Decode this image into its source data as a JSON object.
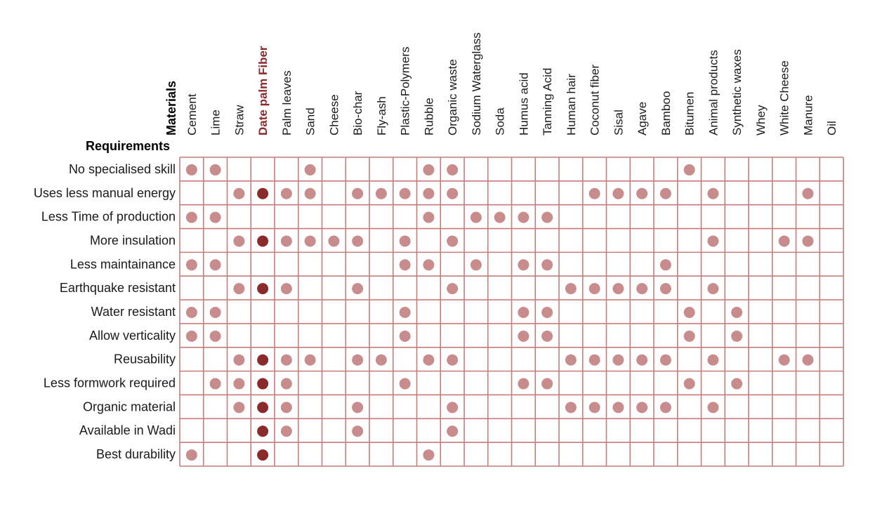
{
  "chart_data": {
    "type": "table",
    "row_header": "Requirements",
    "column_header": "Materials",
    "highlight_column": "Date palm Fiber",
    "colors": {
      "grid": "#c77c7c",
      "dot": "#c98c8c",
      "dot_highlight": "#8b2a2a",
      "highlight_text": "#8b2a2a"
    },
    "columns": [
      "Cement",
      "Lime",
      "Straw",
      "Date palm Fiber",
      "Palm leaves",
      "Sand",
      "Cheese",
      "Bio-char",
      "Fly-ash",
      "Plastic-Polymers",
      "Rubble",
      "Organic waste",
      "Sodium Waterglass",
      "Soda",
      "Humus acid",
      "Tanning Acid",
      "Human hair",
      "Coconut fiber",
      "Sisal",
      "Agave",
      "Bamboo",
      "Bitumen",
      "Animal products",
      "Synthetic waxes",
      "Whey",
      "White Cheese",
      "Manure",
      "Oil"
    ],
    "rows": [
      {
        "requirement": "No specialised skill",
        "materials": [
          "Cement",
          "Lime",
          "Sand",
          "Rubble",
          "Organic waste",
          "Bitumen"
        ]
      },
      {
        "requirement": "Uses less manual energy",
        "materials": [
          "Straw",
          "Date palm Fiber",
          "Palm leaves",
          "Sand",
          "Bio-char",
          "Fly-ash",
          "Plastic-Polymers",
          "Rubble",
          "Organic waste",
          "Coconut fiber",
          "Sisal",
          "Agave",
          "Bamboo",
          "Animal products",
          "Manure"
        ]
      },
      {
        "requirement": "Less Time of production",
        "materials": [
          "Cement",
          "Lime",
          "Rubble",
          "Sodium Waterglass",
          "Soda",
          "Humus acid",
          "Tanning Acid"
        ]
      },
      {
        "requirement": "More insulation",
        "materials": [
          "Straw",
          "Date palm Fiber",
          "Palm leaves",
          "Sand",
          "Cheese",
          "Bio-char",
          "Plastic-Polymers",
          "Organic waste",
          "Animal products",
          "White Cheese",
          "Manure"
        ]
      },
      {
        "requirement": "Less maintainance",
        "materials": [
          "Cement",
          "Lime",
          "Plastic-Polymers",
          "Rubble",
          "Sodium Waterglass",
          "Humus acid",
          "Tanning Acid",
          "Bamboo"
        ]
      },
      {
        "requirement": "Earthquake resistant",
        "materials": [
          "Straw",
          "Date palm Fiber",
          "Palm leaves",
          "Bio-char",
          "Organic waste",
          "Human hair",
          "Coconut fiber",
          "Sisal",
          "Agave",
          "Bamboo",
          "Animal products"
        ]
      },
      {
        "requirement": "Water resistant",
        "materials": [
          "Cement",
          "Lime",
          "Plastic-Polymers",
          "Humus acid",
          "Tanning Acid",
          "Bitumen",
          "Synthetic waxes"
        ]
      },
      {
        "requirement": "Allow verticality",
        "materials": [
          "Cement",
          "Lime",
          "Plastic-Polymers",
          "Humus acid",
          "Tanning Acid",
          "Bitumen",
          "Synthetic waxes"
        ]
      },
      {
        "requirement": "Reusability",
        "materials": [
          "Straw",
          "Date palm Fiber",
          "Palm leaves",
          "Sand",
          "Bio-char",
          "Fly-ash",
          "Rubble",
          "Organic waste",
          "Human hair",
          "Coconut fiber",
          "Sisal",
          "Agave",
          "Bamboo",
          "Animal products",
          "White Cheese",
          "Manure"
        ]
      },
      {
        "requirement": "Less formwork required",
        "materials": [
          "Lime",
          "Straw",
          "Date palm Fiber",
          "Palm leaves",
          "Plastic-Polymers",
          "Humus acid",
          "Tanning Acid",
          "Bitumen",
          "Synthetic waxes"
        ]
      },
      {
        "requirement": "Organic material",
        "materials": [
          "Straw",
          "Date palm Fiber",
          "Palm leaves",
          "Bio-char",
          "Organic waste",
          "Human hair",
          "Coconut fiber",
          "Sisal",
          "Agave",
          "Bamboo",
          "Animal products"
        ]
      },
      {
        "requirement": "Available in Wadi",
        "materials": [
          "Date palm Fiber",
          "Palm leaves",
          "Bio-char",
          "Organic waste"
        ]
      },
      {
        "requirement": "Best durability",
        "materials": [
          "Cement",
          "Date palm Fiber",
          "Rubble"
        ]
      }
    ]
  }
}
